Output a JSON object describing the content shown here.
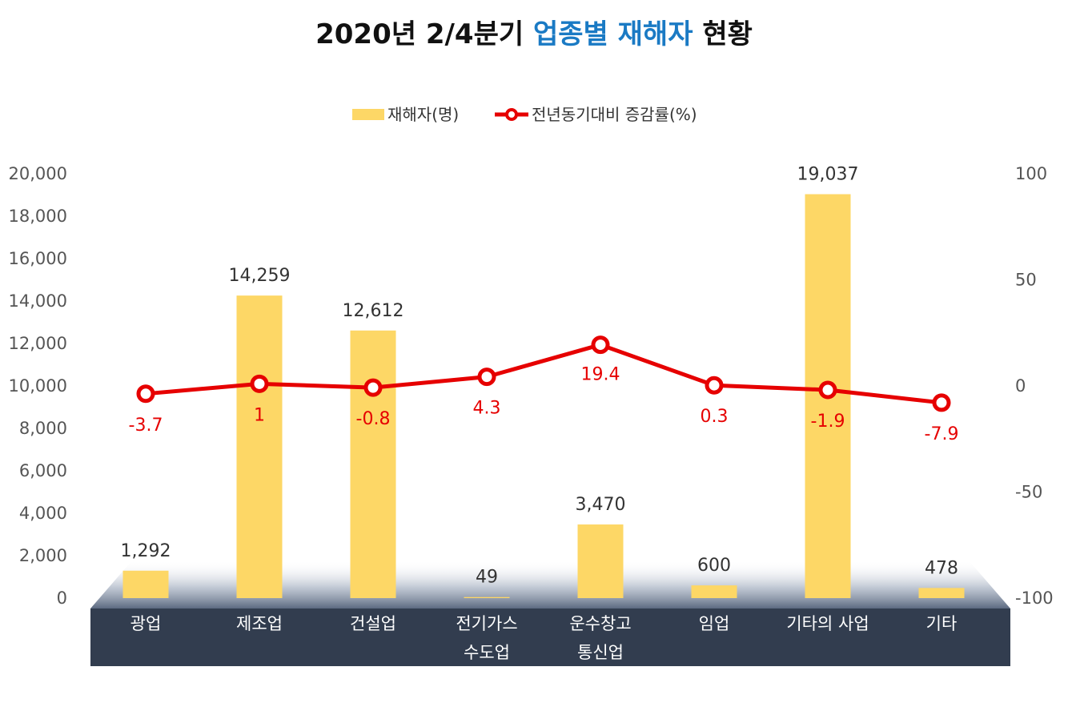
{
  "title": {
    "prefix": "2020년 2/4분기 ",
    "accent": "업종별 재해자",
    "suffix": " 현황"
  },
  "colors": {
    "bar": "#fdd766",
    "line": "#e60000",
    "title_accent": "#1a7ac4",
    "category_band": "#323d4f"
  },
  "chart_data": {
    "type": "bar",
    "categories": [
      [
        "광업"
      ],
      [
        "제조업"
      ],
      [
        "건설업"
      ],
      [
        "전기가스",
        "수도업"
      ],
      [
        "운수창고",
        "통신업"
      ],
      [
        "임업"
      ],
      [
        "기타의 사업"
      ],
      [
        "기타"
      ]
    ],
    "series": [
      {
        "name": "재해자(명)",
        "type": "bar",
        "axis": "left",
        "values": [
          1292,
          14259,
          12612,
          49,
          3470,
          600,
          19037,
          478
        ],
        "labels": [
          "1,292",
          "14,259",
          "12,612",
          "49",
          "3,470",
          "600",
          "19,037",
          "478"
        ]
      },
      {
        "name": "전년동기대비 증감률(%)",
        "type": "line",
        "axis": "right",
        "values": [
          -3.7,
          1,
          -0.8,
          4.3,
          19.4,
          0.3,
          -1.9,
          -7.9
        ],
        "labels": [
          "-3.7",
          "1",
          "-0.8",
          "4.3",
          "19.4",
          "0.3",
          "-1.9",
          "-7.9"
        ]
      }
    ],
    "y_left": {
      "range": [
        0,
        20000
      ],
      "ticks": [
        0,
        2000,
        4000,
        6000,
        8000,
        10000,
        12000,
        14000,
        16000,
        18000,
        20000
      ],
      "tick_labels": [
        "0",
        "2,000",
        "4,000",
        "6,000",
        "8,000",
        "10,000",
        "12,000",
        "14,000",
        "16,000",
        "18,000",
        "20,000"
      ]
    },
    "y_right": {
      "range": [
        -100,
        100
      ],
      "ticks": [
        -100,
        -50,
        0,
        50,
        100
      ],
      "tick_labels": [
        "-100",
        "-50",
        "0",
        "50",
        "100"
      ]
    },
    "legend_position": "top-center",
    "grid": false
  }
}
